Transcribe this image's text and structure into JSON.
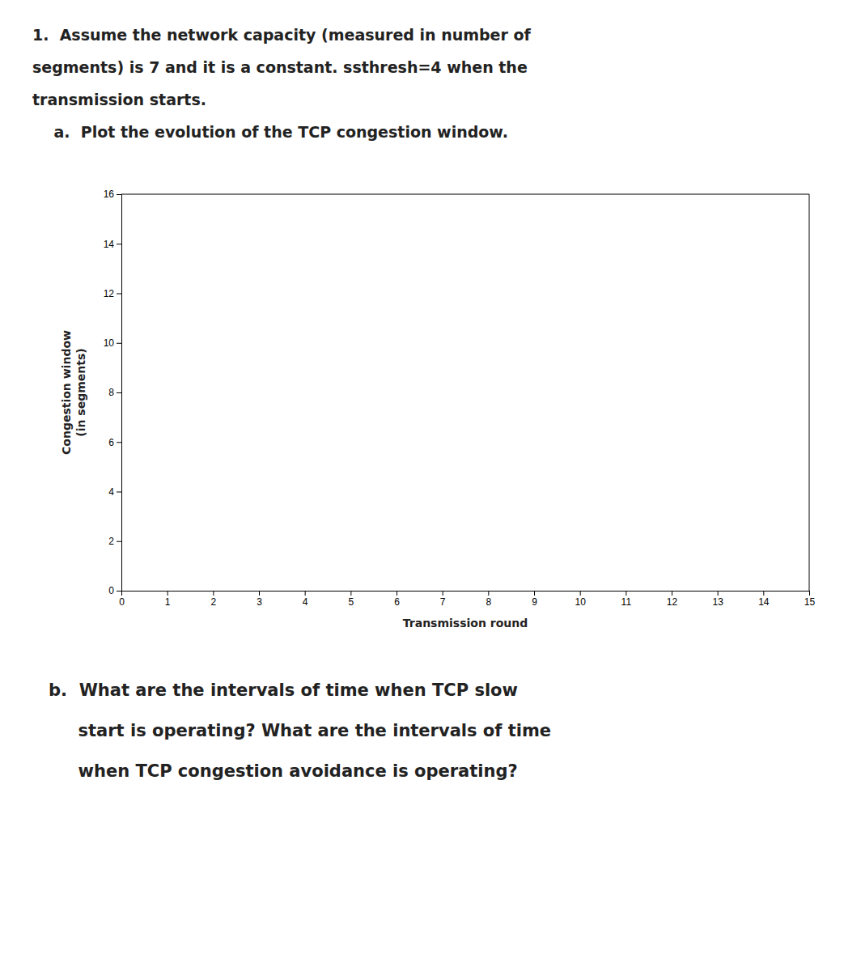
{
  "chart_data": {
    "type": "line",
    "title": [
      "1.  Assume the network capacity (measured in number of",
      "segments) is 7 and it is a constant. ssthresh=4 when the",
      "transmission starts.",
      "    a.  Plot the evolution of the TCP congestion window."
    ],
    "xlabel": "Transmission round",
    "ylabel": "Congestion window\n(in segments)",
    "series": [],
    "xlim": [
      0,
      15
    ],
    "ylim": [
      0,
      16
    ],
    "xticks": [
      0,
      1,
      2,
      3,
      4,
      5,
      6,
      7,
      8,
      9,
      10,
      11,
      12,
      13,
      14,
      15
    ],
    "yticks": [
      0,
      2,
      4,
      6,
      8,
      10,
      12,
      14,
      16
    ],
    "grid": false,
    "annotations": [
      "b.  What are the intervals of time when TCP slow",
      "     start is operating? What are the intervals of time",
      "     when TCP congestion avoidance is operating?"
    ]
  }
}
